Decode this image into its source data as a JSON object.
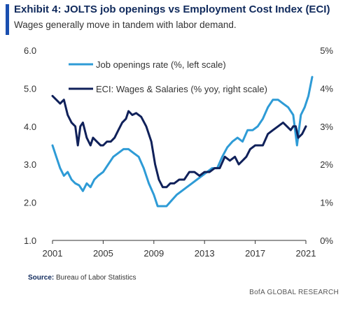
{
  "header": {
    "title": "Exhibit 4: JOLTS job openings vs Employment Cost Index (ECI)",
    "subtitle": "Wages generally move in tandem with labor demand."
  },
  "footer": {
    "source_label": "Source:",
    "source_text": "Bureau of Labor Statistics",
    "brand": "BofA GLOBAL RESEARCH"
  },
  "colors": {
    "accent": "#1a4fb0",
    "jolts": "#2e9bd6",
    "eci": "#10215a",
    "axis": "#333333"
  },
  "chart_data": {
    "type": "line",
    "title": "",
    "grid": false,
    "legend_position": "top-left",
    "x_axis": {
      "range": [
        2001,
        2021
      ],
      "ticks": [
        2001,
        2005,
        2009,
        2013,
        2017,
        2021
      ],
      "tick_labels": [
        "2001",
        "2005",
        "2009",
        "2013",
        "2017",
        "2021"
      ]
    },
    "left_axis": {
      "range": [
        1.0,
        6.0
      ],
      "ticks": [
        1.0,
        2.0,
        3.0,
        4.0,
        5.0,
        6.0
      ],
      "tick_labels": [
        "1.0",
        "2.0",
        "3.0",
        "4.0",
        "5.0",
        "6.0"
      ]
    },
    "right_axis": {
      "range": [
        0,
        5
      ],
      "ticks": [
        0,
        1,
        2,
        3,
        4,
        5
      ],
      "tick_labels": [
        "0%",
        "1%",
        "2%",
        "3%",
        "4%",
        "5%"
      ]
    },
    "series": [
      {
        "name": "Job openings rate (%, left scale)",
        "axis": "left",
        "color": "#2e9bd6",
        "points": [
          [
            2001.0,
            3.5
          ],
          [
            2001.3,
            3.2
          ],
          [
            2001.6,
            2.9
          ],
          [
            2001.9,
            2.7
          ],
          [
            2002.2,
            2.8
          ],
          [
            2002.5,
            2.6
          ],
          [
            2002.8,
            2.5
          ],
          [
            2003.1,
            2.45
          ],
          [
            2003.4,
            2.3
          ],
          [
            2003.7,
            2.5
          ],
          [
            2004.0,
            2.4
          ],
          [
            2004.3,
            2.6
          ],
          [
            2004.6,
            2.7
          ],
          [
            2005.0,
            2.8
          ],
          [
            2005.4,
            3.0
          ],
          [
            2005.8,
            3.2
          ],
          [
            2006.2,
            3.3
          ],
          [
            2006.6,
            3.4
          ],
          [
            2007.0,
            3.4
          ],
          [
            2007.4,
            3.3
          ],
          [
            2007.8,
            3.2
          ],
          [
            2008.2,
            2.9
          ],
          [
            2008.6,
            2.5
          ],
          [
            2009.0,
            2.2
          ],
          [
            2009.3,
            1.9
          ],
          [
            2009.7,
            1.9
          ],
          [
            2010.0,
            1.9
          ],
          [
            2010.4,
            2.05
          ],
          [
            2010.8,
            2.2
          ],
          [
            2011.2,
            2.3
          ],
          [
            2011.6,
            2.4
          ],
          [
            2012.0,
            2.5
          ],
          [
            2012.4,
            2.6
          ],
          [
            2012.8,
            2.7
          ],
          [
            2013.2,
            2.8
          ],
          [
            2013.6,
            2.9
          ],
          [
            2014.0,
            2.9
          ],
          [
            2014.4,
            3.2
          ],
          [
            2014.8,
            3.45
          ],
          [
            2015.2,
            3.6
          ],
          [
            2015.6,
            3.7
          ],
          [
            2016.0,
            3.6
          ],
          [
            2016.4,
            3.9
          ],
          [
            2016.8,
            3.9
          ],
          [
            2017.2,
            4.0
          ],
          [
            2017.6,
            4.2
          ],
          [
            2018.0,
            4.5
          ],
          [
            2018.4,
            4.7
          ],
          [
            2018.8,
            4.7
          ],
          [
            2019.2,
            4.6
          ],
          [
            2019.6,
            4.5
          ],
          [
            2020.0,
            4.3
          ],
          [
            2020.3,
            3.5
          ],
          [
            2020.6,
            4.3
          ],
          [
            2020.9,
            4.5
          ],
          [
            2021.2,
            4.8
          ],
          [
            2021.5,
            5.3
          ]
        ]
      },
      {
        "name": "ECI: Wages & Salaries (% yoy, right scale)",
        "axis": "right",
        "color": "#10215a",
        "points": [
          [
            2001.0,
            3.8
          ],
          [
            2001.3,
            3.7
          ],
          [
            2001.6,
            3.6
          ],
          [
            2001.9,
            3.7
          ],
          [
            2002.2,
            3.3
          ],
          [
            2002.5,
            3.1
          ],
          [
            2002.8,
            3.0
          ],
          [
            2003.0,
            2.5
          ],
          [
            2003.2,
            3.0
          ],
          [
            2003.4,
            3.1
          ],
          [
            2003.7,
            2.7
          ],
          [
            2004.0,
            2.5
          ],
          [
            2004.2,
            2.7
          ],
          [
            2004.5,
            2.6
          ],
          [
            2004.8,
            2.5
          ],
          [
            2005.0,
            2.5
          ],
          [
            2005.3,
            2.6
          ],
          [
            2005.6,
            2.6
          ],
          [
            2005.9,
            2.7
          ],
          [
            2006.2,
            2.9
          ],
          [
            2006.5,
            3.1
          ],
          [
            2006.8,
            3.2
          ],
          [
            2007.0,
            3.4
          ],
          [
            2007.3,
            3.3
          ],
          [
            2007.6,
            3.35
          ],
          [
            2008.0,
            3.25
          ],
          [
            2008.4,
            3.0
          ],
          [
            2008.8,
            2.6
          ],
          [
            2009.1,
            2.0
          ],
          [
            2009.4,
            1.6
          ],
          [
            2009.7,
            1.4
          ],
          [
            2010.0,
            1.4
          ],
          [
            2010.3,
            1.5
          ],
          [
            2010.6,
            1.5
          ],
          [
            2011.0,
            1.6
          ],
          [
            2011.4,
            1.6
          ],
          [
            2011.8,
            1.8
          ],
          [
            2012.2,
            1.8
          ],
          [
            2012.6,
            1.7
          ],
          [
            2013.0,
            1.8
          ],
          [
            2013.4,
            1.8
          ],
          [
            2013.8,
            1.9
          ],
          [
            2014.2,
            1.9
          ],
          [
            2014.6,
            2.2
          ],
          [
            2015.0,
            2.1
          ],
          [
            2015.4,
            2.2
          ],
          [
            2015.7,
            2.0
          ],
          [
            2016.0,
            2.1
          ],
          [
            2016.3,
            2.2
          ],
          [
            2016.6,
            2.4
          ],
          [
            2017.0,
            2.5
          ],
          [
            2017.3,
            2.5
          ],
          [
            2017.6,
            2.5
          ],
          [
            2018.0,
            2.8
          ],
          [
            2018.4,
            2.9
          ],
          [
            2018.8,
            3.0
          ],
          [
            2019.2,
            3.1
          ],
          [
            2019.5,
            3.0
          ],
          [
            2019.8,
            2.9
          ],
          [
            2020.0,
            3.0
          ],
          [
            2020.2,
            3.0
          ],
          [
            2020.4,
            2.7
          ],
          [
            2020.7,
            2.8
          ],
          [
            2021.0,
            3.0
          ]
        ]
      }
    ]
  }
}
